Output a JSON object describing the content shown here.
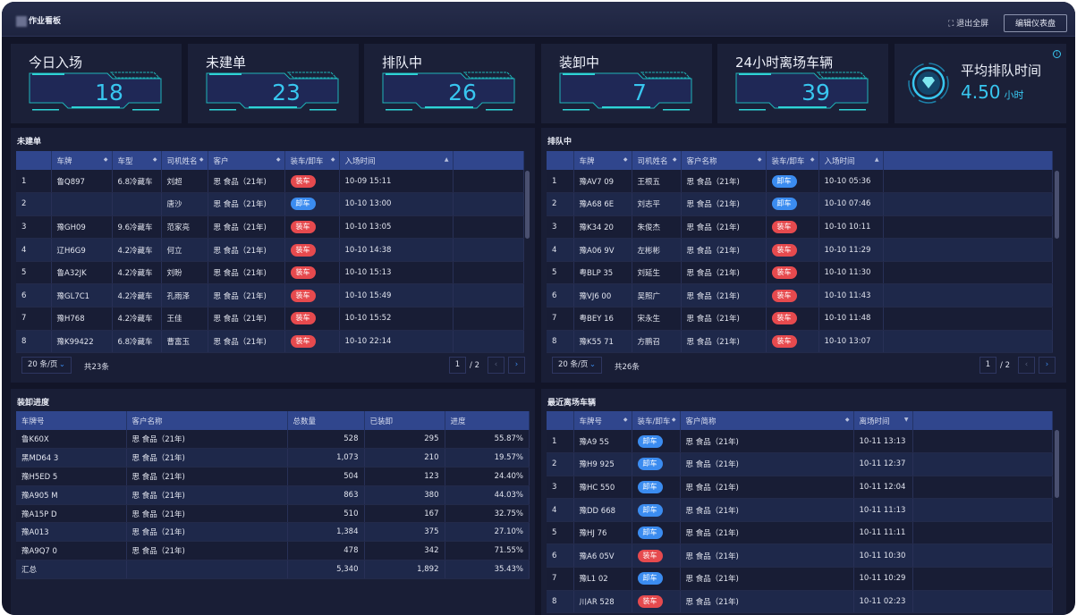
{
  "header": {
    "title": "作业看板",
    "exit_fullscreen": "退出全屏",
    "edit_dashboard": "编辑仪表盘"
  },
  "kpis": [
    {
      "label": "今日入场",
      "value": "18"
    },
    {
      "label": "未建单",
      "value": "23"
    },
    {
      "label": "排队中",
      "value": "26"
    },
    {
      "label": "装卸中",
      "value": "7"
    },
    {
      "label": "24小时离场车辆",
      "value": "39"
    }
  ],
  "avg_queue": {
    "label": "平均排队时间",
    "value": "4.50",
    "unit": "小时",
    "icon": "diamond-icon"
  },
  "colors": {
    "accent": "#38c6ef",
    "load": "#e64a4e",
    "unload": "#3b8cf0",
    "header_row": "#30468d"
  },
  "unbuilt": {
    "title": "未建单",
    "columns": [
      "",
      "车牌",
      "车型",
      "司机姓名",
      "客户",
      "装车/卸车",
      "入场时间"
    ],
    "rows": [
      [
        "1",
        "鲁Q897",
        "6.8冷藏车",
        "刘超",
        "思 食品（21年)",
        "装车",
        "10-09 15:11"
      ],
      [
        "2",
        "",
        "",
        "唐沙",
        "思 食品（21年)",
        "卸车",
        "10-10 13:00"
      ],
      [
        "3",
        "豫GH09",
        "9.6冷藏车",
        "范家亮",
        "思 食品（21年)",
        "装车",
        "10-10 13:05"
      ],
      [
        "4",
        "辽H6G9",
        "4.2冷藏车",
        "何立",
        "思 食品（21年)",
        "装车",
        "10-10 14:38"
      ],
      [
        "5",
        "鲁A32JK",
        "4.2冷藏车",
        "刘盼",
        "思 食品（21年)",
        "装车",
        "10-10 15:13"
      ],
      [
        "6",
        "豫GL7C1",
        "4.2冷藏车",
        "孔雨泽",
        "思 食品（21年)",
        "装车",
        "10-10 15:49"
      ],
      [
        "7",
        "豫H768",
        "4.2冷藏车",
        "王佳",
        "思 食品（21年)",
        "装车",
        "10-10 15:52"
      ],
      [
        "8",
        "豫K99422",
        "6.8冷藏车",
        "曹富玉",
        "思 食品（21年)",
        "装车",
        "10-10 22:14"
      ]
    ],
    "page_size": "20 条/页",
    "total": "共23条",
    "page": "1",
    "pages": "/ 2"
  },
  "queue": {
    "title": "排队中",
    "columns": [
      "",
      "车牌",
      "司机姓名",
      "客户名称",
      "装车/卸车",
      "入场时间"
    ],
    "rows": [
      [
        "1",
        "豫AV7 09",
        "王根五",
        "思 食品（21年)",
        "卸车",
        "10-10 05:36"
      ],
      [
        "2",
        "豫A68 6E",
        "刘志平",
        "思 食品（21年)",
        "卸车",
        "10-10 07:46"
      ],
      [
        "3",
        "豫K34 20",
        "朱俊杰",
        "思 食品（21年)",
        "装车",
        "10-10 10:11"
      ],
      [
        "4",
        "豫A06 9V",
        "左彬彬",
        "思 食品（21年)",
        "装车",
        "10-10 11:29"
      ],
      [
        "5",
        "粤BLP 35",
        "刘延生",
        "思 食品（21年)",
        "装车",
        "10-10 11:30"
      ],
      [
        "6",
        "豫VJ6 00",
        "吴照广",
        "思 食品（21年)",
        "装车",
        "10-10 11:43"
      ],
      [
        "7",
        "粤BEY 16",
        "宋永生",
        "思 食品（21年)",
        "装车",
        "10-10 11:48"
      ],
      [
        "8",
        "豫K55 71",
        "方鹏召",
        "思 食品（21年)",
        "装车",
        "10-10 13:07"
      ]
    ],
    "page_size": "20 条/页",
    "total": "共26条",
    "page": "1",
    "pages": "/ 2"
  },
  "progress": {
    "title": "装卸进度",
    "columns": [
      "车牌号",
      "客户名称",
      "总数量",
      "已装卸",
      "进度"
    ],
    "rows": [
      [
        "鲁K60X",
        "思 食品（21年)",
        "528",
        "295",
        "55.87%"
      ],
      [
        "黑MD64 3",
        "思 食品（21年)",
        "1,073",
        "210",
        "19.57%"
      ],
      [
        "豫H5ED 5",
        "思 食品（21年)",
        "504",
        "123",
        "24.40%"
      ],
      [
        "豫A905 M",
        "思 食品（21年)",
        "863",
        "380",
        "44.03%"
      ],
      [
        "豫A15P D",
        "思 食品（21年)",
        "510",
        "167",
        "32.75%"
      ],
      [
        "豫A013",
        "思 食品（21年)",
        "1,384",
        "375",
        "27.10%"
      ],
      [
        "豫A9Q7 0",
        "思 食品（21年)",
        "478",
        "342",
        "71.55%"
      ]
    ],
    "summary": [
      "汇总",
      "",
      "5,340",
      "1,892",
      "35.43%"
    ]
  },
  "departed": {
    "title": "最近离场车辆",
    "columns": [
      "",
      "车牌号",
      "装车/卸车",
      "客户简称",
      "离场时间"
    ],
    "rows": [
      [
        "1",
        "豫A9 5S",
        "卸车",
        "思 食品（21年)",
        "10-11 13:13"
      ],
      [
        "2",
        "豫H9 925",
        "卸车",
        "思 食品（21年)",
        "10-11 12:37"
      ],
      [
        "3",
        "豫HC 550",
        "卸车",
        "思 食品（21年)",
        "10-11 12:04"
      ],
      [
        "4",
        "豫DD 668",
        "卸车",
        "思 食品（21年)",
        "10-11 11:13"
      ],
      [
        "5",
        "豫HJ 76",
        "卸车",
        "思 食品（21年)",
        "10-11 11:11"
      ],
      [
        "6",
        "豫A6 05V",
        "装车",
        "思 食品（21年)",
        "10-11 10:30"
      ],
      [
        "7",
        "豫L1 02",
        "卸车",
        "思 食品（21年)",
        "10-11 10:29"
      ],
      [
        "8",
        "川AR 528",
        "装车",
        "思 食品（21年)",
        "10-11 02:23"
      ]
    ]
  }
}
